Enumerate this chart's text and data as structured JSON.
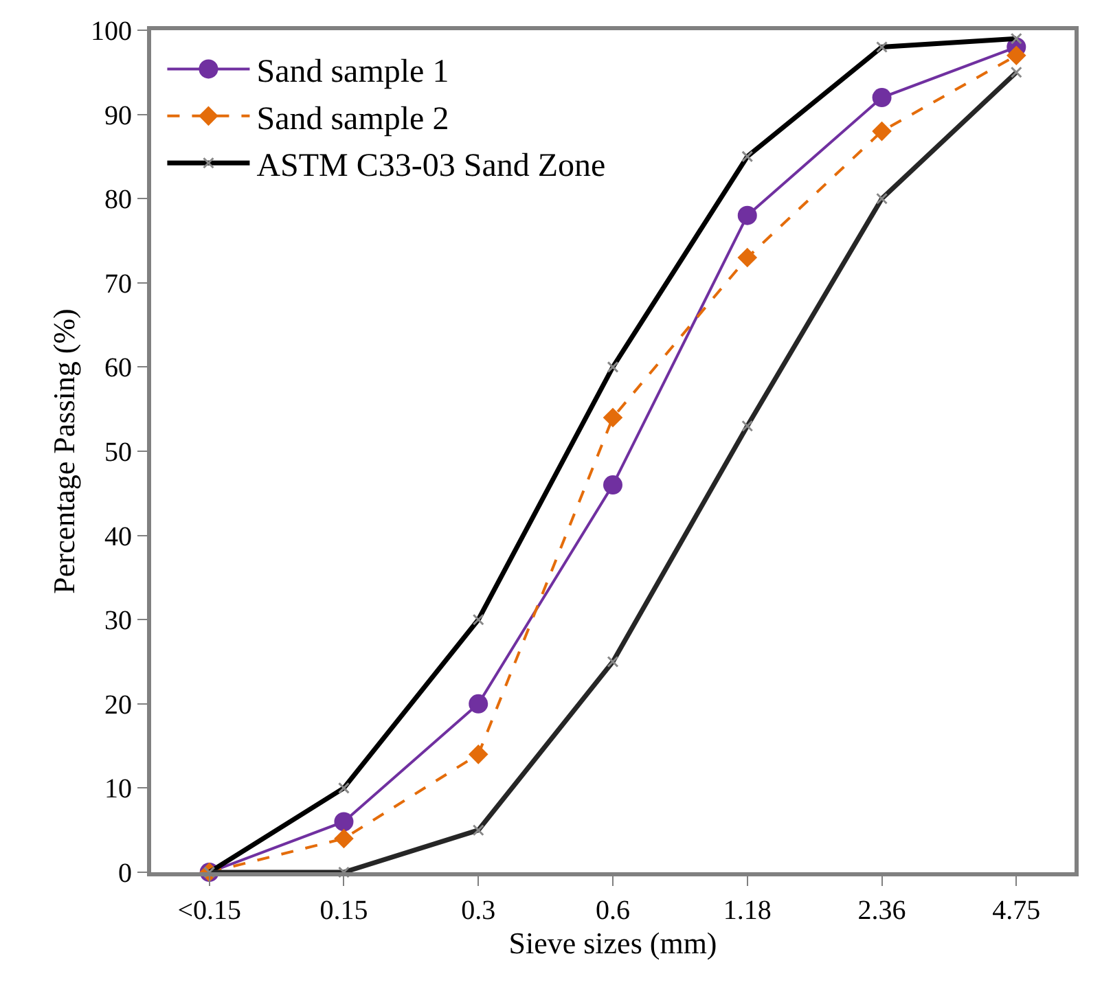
{
  "chart_data": {
    "type": "line",
    "xlabel": "Sieve sizes (mm)",
    "ylabel": "Percentage Passing (%)",
    "categories": [
      "<0.15",
      "0.15",
      "0.3",
      "0.6",
      "1.18",
      "2.36",
      "4.75"
    ],
    "series": [
      {
        "name": "Sand sample 1",
        "color": "#7030a0",
        "marker": "circle",
        "line_style": "solid",
        "values": [
          0,
          6,
          20,
          46,
          78,
          92,
          98
        ]
      },
      {
        "name": "Sand sample 2",
        "color": "#e46c0a",
        "marker": "diamond",
        "line_style": "dashed",
        "values": [
          0,
          4,
          14,
          54,
          73,
          88,
          97
        ]
      },
      {
        "name": "ASTM C33-03 Sand Zone",
        "color": "#000000",
        "marker": "cross",
        "line_style": "solid",
        "values": [
          0,
          10,
          30,
          60,
          85,
          98,
          99
        ]
      },
      {
        "color": "#262626",
        "marker": "cross",
        "line_style": "solid",
        "values": [
          0,
          0,
          5,
          25,
          53,
          80,
          95
        ]
      }
    ],
    "ylim": [
      0,
      100
    ],
    "yticks": [
      0,
      10,
      20,
      30,
      40,
      50,
      60,
      70,
      80,
      90,
      100
    ],
    "grid": false,
    "legend": "top left"
  }
}
